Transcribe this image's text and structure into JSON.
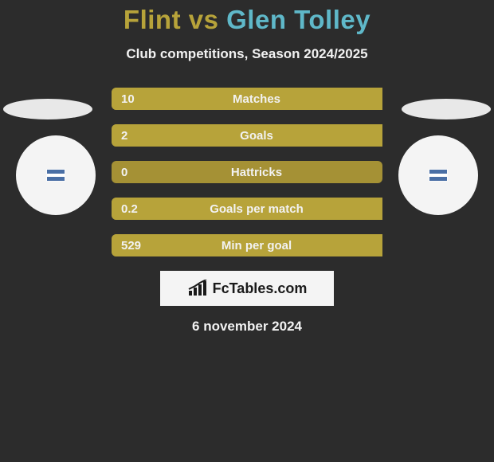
{
  "background_color": "#2c2c2c",
  "title": {
    "player1": "Flint",
    "vs": "vs",
    "player2": "Glen Tolley",
    "player1_color": "#b7a33a",
    "vs_color": "#b7a33a",
    "player2_color": "#5fb8c9"
  },
  "subtitle": {
    "text": "Club competitions, Season 2024/2025",
    "color": "#f2f2f2"
  },
  "shadow_ellipse_color": "#e8e8e8",
  "badge": {
    "bg_color": "#f4f4f4",
    "flag_colors": [
      "#4a6fa5",
      "#ffffff",
      "#4a6fa5"
    ]
  },
  "stats": {
    "bar_bg_color": "#a59135",
    "fill_color": "#b7a33a",
    "text_color": "#f2f2f2",
    "rows": [
      {
        "label": "Matches",
        "left_value": "10",
        "left_pct": 100,
        "right_pct": 0
      },
      {
        "label": "Goals",
        "left_value": "2",
        "left_pct": 100,
        "right_pct": 0
      },
      {
        "label": "Hattricks",
        "left_value": "0",
        "left_pct": 0,
        "right_pct": 0
      },
      {
        "label": "Goals per match",
        "left_value": "0.2",
        "left_pct": 100,
        "right_pct": 0
      },
      {
        "label": "Min per goal",
        "left_value": "529",
        "left_pct": 100,
        "right_pct": 0
      }
    ]
  },
  "brand": {
    "box_bg": "#f4f4f4",
    "text": "FcTables.com",
    "text_color": "#1a1a1a",
    "icon_color": "#1a1a1a"
  },
  "date": {
    "text": "6 november 2024",
    "color": "#f2f2f2"
  }
}
